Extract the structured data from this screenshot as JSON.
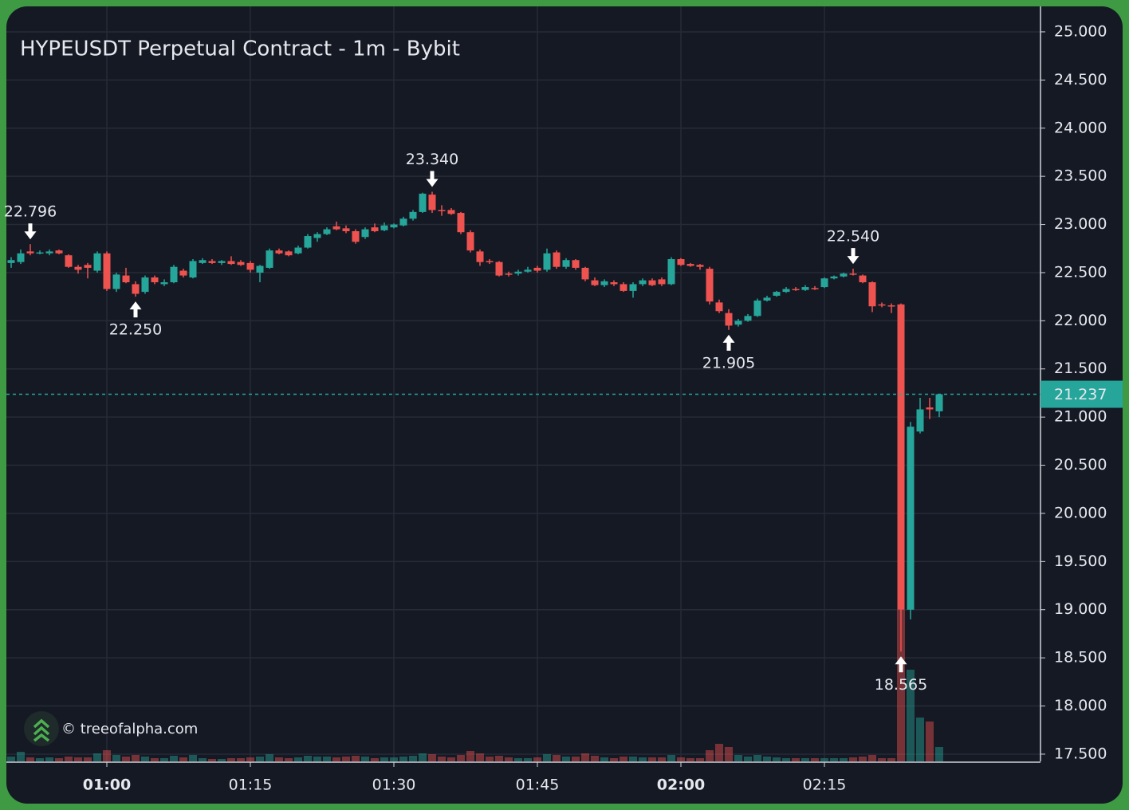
{
  "chart_data": {
    "type": "candlestick",
    "title": "HYPEUSDT Perpetual Contract - 1m - Bybit",
    "watermark": "© treeofalpha.com",
    "up_color": "#26a69a",
    "down_color": "#ef5350",
    "x": [
      "00:50",
      "00:51",
      "00:52",
      "00:53",
      "00:54",
      "00:55",
      "00:56",
      "00:57",
      "00:58",
      "00:59",
      "01:00",
      "01:01",
      "01:02",
      "01:03",
      "01:04",
      "01:05",
      "01:06",
      "01:07",
      "01:08",
      "01:09",
      "01:10",
      "01:11",
      "01:12",
      "01:13",
      "01:14",
      "01:15",
      "01:16",
      "01:17",
      "01:18",
      "01:19",
      "01:20",
      "01:21",
      "01:22",
      "01:23",
      "01:24",
      "01:25",
      "01:26",
      "01:27",
      "01:28",
      "01:29",
      "01:30",
      "01:31",
      "01:32",
      "01:33",
      "01:34",
      "01:35",
      "01:36",
      "01:37",
      "01:38",
      "01:39",
      "01:40",
      "01:41",
      "01:42",
      "01:43",
      "01:44",
      "01:45",
      "01:46",
      "01:47",
      "01:48",
      "01:49",
      "01:50",
      "01:51",
      "01:52",
      "01:53",
      "01:54",
      "01:55",
      "01:56",
      "01:57",
      "01:58",
      "01:59",
      "02:00",
      "02:01",
      "02:02",
      "02:03",
      "02:04",
      "02:05",
      "02:06",
      "02:07",
      "02:08",
      "02:09",
      "02:10",
      "02:11",
      "02:12",
      "02:13",
      "02:14",
      "02:15",
      "02:16",
      "02:17",
      "02:18",
      "02:19",
      "02:20",
      "02:21",
      "02:22",
      "02:23",
      "02:24",
      "02:25",
      "02:26",
      "02:27"
    ],
    "ohlc": [
      [
        22.6,
        22.66,
        22.55,
        22.63
      ],
      [
        22.61,
        22.74,
        22.59,
        22.7
      ],
      [
        22.72,
        22.796,
        22.68,
        22.7
      ],
      [
        22.71,
        22.73,
        22.69,
        22.71
      ],
      [
        22.7,
        22.74,
        22.68,
        22.72
      ],
      [
        22.73,
        22.74,
        22.69,
        22.7
      ],
      [
        22.68,
        22.69,
        22.55,
        22.56
      ],
      [
        22.56,
        22.58,
        22.49,
        22.53
      ],
      [
        22.58,
        22.6,
        22.44,
        22.55
      ],
      [
        22.52,
        22.72,
        22.5,
        22.7
      ],
      [
        22.7,
        22.72,
        22.31,
        22.33
      ],
      [
        22.33,
        22.5,
        22.3,
        22.48
      ],
      [
        22.47,
        22.55,
        22.39,
        22.4
      ],
      [
        22.38,
        22.41,
        22.25,
        22.28
      ],
      [
        22.3,
        22.47,
        22.28,
        22.45
      ],
      [
        22.45,
        22.47,
        22.38,
        22.4
      ],
      [
        22.38,
        22.43,
        22.36,
        22.4
      ],
      [
        22.4,
        22.58,
        22.39,
        22.56
      ],
      [
        22.52,
        22.54,
        22.45,
        22.47
      ],
      [
        22.45,
        22.64,
        22.44,
        22.62
      ],
      [
        22.6,
        22.65,
        22.59,
        22.63
      ],
      [
        22.62,
        22.64,
        22.59,
        22.6
      ],
      [
        22.6,
        22.63,
        22.58,
        22.62
      ],
      [
        22.62,
        22.67,
        22.58,
        22.59
      ],
      [
        22.61,
        22.63,
        22.57,
        22.58
      ],
      [
        22.6,
        22.62,
        22.5,
        22.53
      ],
      [
        22.5,
        22.58,
        22.4,
        22.57
      ],
      [
        22.55,
        22.75,
        22.54,
        22.73
      ],
      [
        22.73,
        22.75,
        22.69,
        22.7
      ],
      [
        22.72,
        22.73,
        22.67,
        22.68
      ],
      [
        22.7,
        22.78,
        22.69,
        22.76
      ],
      [
        22.76,
        22.9,
        22.75,
        22.88
      ],
      [
        22.86,
        22.92,
        22.82,
        22.9
      ],
      [
        22.9,
        22.97,
        22.89,
        22.95
      ],
      [
        22.98,
        23.03,
        22.94,
        22.95
      ],
      [
        22.96,
        22.99,
        22.91,
        22.93
      ],
      [
        22.93,
        22.95,
        22.8,
        22.82
      ],
      [
        22.87,
        22.97,
        22.85,
        22.95
      ],
      [
        22.97,
        23.01,
        22.92,
        22.93
      ],
      [
        22.94,
        23.02,
        22.93,
        22.99
      ],
      [
        22.97,
        23.01,
        22.96,
        23.0
      ],
      [
        22.99,
        23.08,
        22.98,
        23.06
      ],
      [
        23.06,
        23.15,
        23.04,
        23.13
      ],
      [
        23.13,
        23.33,
        23.12,
        23.32
      ],
      [
        23.31,
        23.34,
        23.12,
        23.15
      ],
      [
        23.15,
        23.2,
        23.09,
        23.14
      ],
      [
        23.15,
        23.17,
        23.1,
        23.11
      ],
      [
        23.12,
        23.13,
        22.9,
        22.92
      ],
      [
        22.92,
        22.94,
        22.71,
        22.73
      ],
      [
        22.72,
        22.74,
        22.57,
        22.61
      ],
      [
        22.62,
        22.64,
        22.59,
        22.61
      ],
      [
        22.61,
        22.62,
        22.46,
        22.47
      ],
      [
        22.49,
        22.51,
        22.46,
        22.48
      ],
      [
        22.49,
        22.53,
        22.47,
        22.51
      ],
      [
        22.51,
        22.56,
        22.5,
        22.53
      ],
      [
        22.55,
        22.57,
        22.5,
        22.52
      ],
      [
        22.53,
        22.75,
        22.51,
        22.7
      ],
      [
        22.71,
        22.73,
        22.54,
        22.56
      ],
      [
        22.56,
        22.65,
        22.54,
        22.63
      ],
      [
        22.63,
        22.64,
        22.53,
        22.55
      ],
      [
        22.55,
        22.56,
        22.41,
        22.43
      ],
      [
        22.42,
        22.45,
        22.36,
        22.37
      ],
      [
        22.37,
        22.43,
        22.35,
        22.41
      ],
      [
        22.4,
        22.42,
        22.36,
        22.38
      ],
      [
        22.38,
        22.4,
        22.3,
        22.31
      ],
      [
        22.31,
        22.4,
        22.24,
        22.38
      ],
      [
        22.38,
        22.44,
        22.36,
        22.42
      ],
      [
        22.42,
        22.44,
        22.36,
        22.37
      ],
      [
        22.43,
        22.45,
        22.36,
        22.38
      ],
      [
        22.38,
        22.66,
        22.37,
        22.64
      ],
      [
        22.64,
        22.65,
        22.57,
        22.58
      ],
      [
        22.59,
        22.6,
        22.56,
        22.57
      ],
      [
        22.58,
        22.59,
        22.53,
        22.56
      ],
      [
        22.54,
        22.56,
        22.17,
        22.2
      ],
      [
        22.19,
        22.22,
        22.08,
        22.1
      ],
      [
        22.08,
        22.12,
        21.905,
        21.95
      ],
      [
        21.96,
        22.02,
        21.94,
        22.0
      ],
      [
        22.0,
        22.07,
        21.99,
        22.05
      ],
      [
        22.05,
        22.23,
        22.04,
        22.21
      ],
      [
        22.21,
        22.26,
        22.2,
        22.24
      ],
      [
        22.26,
        22.31,
        22.25,
        22.3
      ],
      [
        22.3,
        22.35,
        22.29,
        22.33
      ],
      [
        22.33,
        22.35,
        22.31,
        22.32
      ],
      [
        22.32,
        22.37,
        22.31,
        22.35
      ],
      [
        22.34,
        22.36,
        22.32,
        22.33
      ],
      [
        22.35,
        22.45,
        22.34,
        22.44
      ],
      [
        22.44,
        22.47,
        22.43,
        22.46
      ],
      [
        22.46,
        22.5,
        22.45,
        22.49
      ],
      [
        22.49,
        22.54,
        22.47,
        22.48
      ],
      [
        22.47,
        22.48,
        22.39,
        22.4
      ],
      [
        22.4,
        22.41,
        22.09,
        22.15
      ],
      [
        22.17,
        22.19,
        22.14,
        22.16
      ],
      [
        22.16,
        22.18,
        22.08,
        22.15
      ],
      [
        22.17,
        22.18,
        18.565,
        19.0
      ],
      [
        19.0,
        20.95,
        18.9,
        20.9
      ],
      [
        20.85,
        21.2,
        20.83,
        21.08
      ],
      [
        21.1,
        21.2,
        20.98,
        21.08
      ],
      [
        21.06,
        21.24,
        21.0,
        21.237
      ]
    ],
    "volume": [
      6,
      12,
      5,
      4,
      5,
      4,
      6,
      5,
      5,
      10,
      14,
      8,
      6,
      8,
      6,
      4,
      4,
      7,
      5,
      8,
      4,
      3,
      3,
      4,
      4,
      5,
      6,
      9,
      5,
      4,
      5,
      7,
      6,
      6,
      5,
      6,
      7,
      6,
      4,
      5,
      5,
      6,
      7,
      10,
      9,
      6,
      5,
      8,
      13,
      10,
      6,
      7,
      5,
      4,
      4,
      5,
      9,
      8,
      6,
      6,
      10,
      7,
      5,
      4,
      6,
      6,
      5,
      5,
      5,
      8,
      5,
      4,
      4,
      14,
      22,
      18,
      8,
      6,
      8,
      6,
      5,
      4,
      4,
      4,
      4,
      4,
      4,
      4,
      5,
      6,
      8,
      4,
      4,
      190,
      115,
      55,
      50,
      18
    ],
    "ylim": [
      17.425,
      25.248
    ],
    "yticks": [
      {
        "value": 17.5,
        "label": "17.500"
      },
      {
        "value": 18,
        "label": "18.000"
      },
      {
        "value": 18.5,
        "label": "18.500"
      },
      {
        "value": 19,
        "label": "19.000"
      },
      {
        "value": 19.5,
        "label": "19.500"
      },
      {
        "value": 20,
        "label": "20.000"
      },
      {
        "value": 20.5,
        "label": "20.500"
      },
      {
        "value": 21,
        "label": "21.000"
      },
      {
        "value": 21.5,
        "label": "21.500"
      },
      {
        "value": 22,
        "label": "22.000"
      },
      {
        "value": 22.5,
        "label": "22.500"
      },
      {
        "value": 23,
        "label": "23.000"
      },
      {
        "value": 23.5,
        "label": "23.500"
      },
      {
        "value": 24,
        "label": "24.000"
      },
      {
        "value": 24.5,
        "label": "24.500"
      },
      {
        "value": 25,
        "label": "25.000"
      }
    ],
    "xticks": [
      "01:00",
      "01:15",
      "01:30",
      "01:45",
      "02:00",
      "02:15"
    ],
    "last_price": 21.237,
    "annotations": [
      {
        "x": "00:52",
        "value": 22.796,
        "side": "high"
      },
      {
        "x": "01:03",
        "value": 22.25,
        "label": "22.250",
        "side": "low"
      },
      {
        "x": "01:34",
        "value": 23.34,
        "label": "23.340",
        "side": "high"
      },
      {
        "x": "02:05",
        "value": 21.905,
        "side": "low"
      },
      {
        "x": "02:18",
        "value": 22.54,
        "label": "22.540",
        "side": "high"
      },
      {
        "x": "02:23",
        "value": 18.565,
        "side": "low"
      }
    ],
    "grid": true
  }
}
